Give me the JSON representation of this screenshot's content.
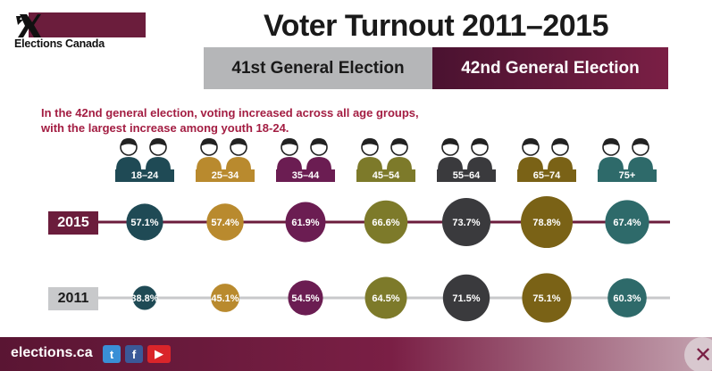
{
  "header": {
    "logo_text": "Elections Canada",
    "title": "Voter Turnout 2011–2015",
    "banner_41": "41st General Election",
    "banner_42": "42nd General Election"
  },
  "subtitle_line1": "In the 42nd general election, voting increased across all age groups,",
  "subtitle_line2": "with the largest increase among youth 18-24.",
  "chart_data": {
    "type": "bubble",
    "categories": [
      "18–24",
      "25–34",
      "35–44",
      "45–54",
      "55–64",
      "65–74",
      "75+"
    ],
    "series": [
      {
        "name": "2015",
        "values": [
          57.1,
          57.4,
          61.9,
          66.6,
          73.7,
          78.8,
          67.4
        ]
      },
      {
        "name": "2011",
        "values": [
          38.8,
          45.1,
          54.5,
          64.5,
          71.5,
          75.1,
          60.3
        ]
      }
    ],
    "value_labels": {
      "2015": [
        "57.1%",
        "57.4%",
        "61.9%",
        "66.6%",
        "73.7%",
        "78.8%",
        "67.4%"
      ],
      "2011": [
        "38.8%",
        "45.1%",
        "54.5%",
        "64.5%",
        "71.5%",
        "75.1%",
        "60.3%"
      ]
    },
    "category_colors": [
      "#1f4a55",
      "#b98a2e",
      "#6b1d52",
      "#7d7a2a",
      "#3a3a3d",
      "#7a6216",
      "#2e6a6a"
    ],
    "row_colors": {
      "2015": "#6b1d3c",
      "2011": "#c8c9cb"
    }
  },
  "footer": {
    "site": "elections.ca",
    "twitter": "t",
    "facebook": "f",
    "youtube": "▶",
    "corner": "✕"
  }
}
